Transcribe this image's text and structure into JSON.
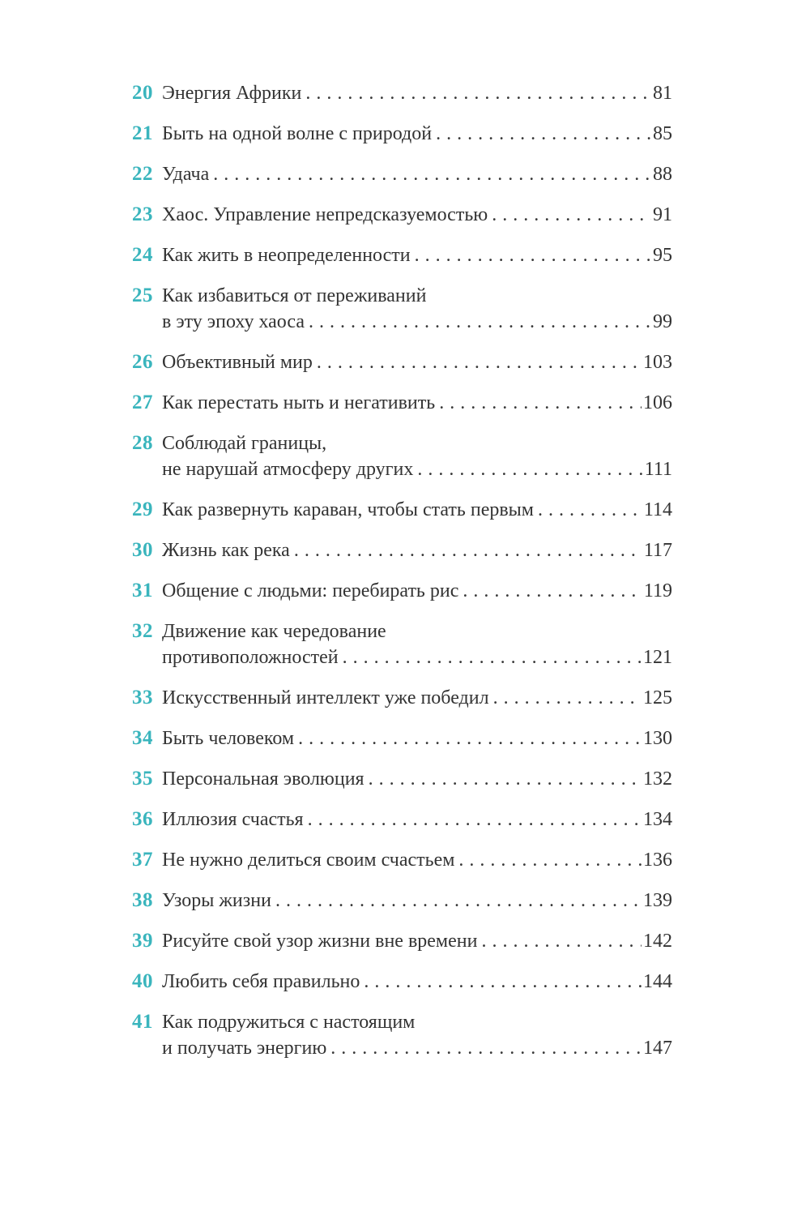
{
  "page": {
    "kind": "table-of-contents",
    "background_color": "#ffffff",
    "text_color": "#333333",
    "accent_color": "#3ab5bd",
    "leader_char": "."
  },
  "toc": {
    "entries": [
      {
        "num": "20",
        "lines": [
          "Энергия Африки"
        ],
        "page": "81"
      },
      {
        "num": "21",
        "lines": [
          "Быть на одной волне с природой"
        ],
        "page": "85"
      },
      {
        "num": "22",
        "lines": [
          "Удача"
        ],
        "page": "88"
      },
      {
        "num": "23",
        "lines": [
          "Хаос. Управление непредсказуемостью"
        ],
        "page": "91"
      },
      {
        "num": "24",
        "lines": [
          "Как жить в неопределенности"
        ],
        "page": "95"
      },
      {
        "num": "25",
        "lines": [
          "Как избавиться от переживаний",
          "в эту эпоху хаоса"
        ],
        "page": "99"
      },
      {
        "num": "26",
        "lines": [
          "Объективный мир"
        ],
        "page": "103"
      },
      {
        "num": "27",
        "lines": [
          "Как перестать ныть и негативить"
        ],
        "page": "106"
      },
      {
        "num": "28",
        "lines": [
          "Соблюдай границы,",
          "не нарушай атмосферу других"
        ],
        "page": "111"
      },
      {
        "num": "29",
        "lines": [
          "Как развернуть караван, чтобы стать первым"
        ],
        "page": "114"
      },
      {
        "num": "30",
        "lines": [
          "Жизнь как река"
        ],
        "page": "117"
      },
      {
        "num": "31",
        "lines": [
          "Общение с людьми: перебирать рис"
        ],
        "page": "119"
      },
      {
        "num": "32",
        "lines": [
          "Движение как чередование",
          "противоположностей"
        ],
        "page": "121"
      },
      {
        "num": "33",
        "lines": [
          "Искусственный интеллект уже победил"
        ],
        "page": "125"
      },
      {
        "num": "34",
        "lines": [
          "Быть человеком"
        ],
        "page": "130"
      },
      {
        "num": "35",
        "lines": [
          "Персональная эволюция"
        ],
        "page": "132"
      },
      {
        "num": "36",
        "lines": [
          "Иллюзия счастья"
        ],
        "page": "134"
      },
      {
        "num": "37",
        "lines": [
          "Не нужно делиться своим счастьем"
        ],
        "page": "136"
      },
      {
        "num": "38",
        "lines": [
          "Узоры жизни"
        ],
        "page": "139"
      },
      {
        "num": "39",
        "lines": [
          "Рисуйте свой узор жизни вне времени"
        ],
        "page": "142"
      },
      {
        "num": "40",
        "lines": [
          "Любить себя правильно"
        ],
        "page": "144"
      },
      {
        "num": "41",
        "lines": [
          "Как подружиться с настоящим",
          "и получать энергию"
        ],
        "page": "147"
      }
    ]
  }
}
